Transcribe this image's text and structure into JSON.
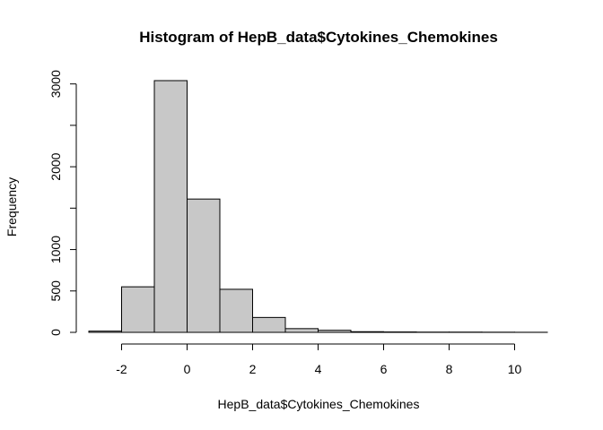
{
  "chart_data": {
    "type": "bar",
    "title": "Histogram of HepB_data$Cytokines_Chemokines",
    "xlabel": "HepB_data$Cytokines_Chemokines",
    "ylabel": "Frequency",
    "bins": [
      {
        "from": -3,
        "to": -2,
        "count": 15
      },
      {
        "from": -2,
        "to": -1,
        "count": 550
      },
      {
        "from": -1,
        "to": 0,
        "count": 3040
      },
      {
        "from": 0,
        "to": 1,
        "count": 1610
      },
      {
        "from": 1,
        "to": 2,
        "count": 520
      },
      {
        "from": 2,
        "to": 3,
        "count": 180
      },
      {
        "from": 3,
        "to": 4,
        "count": 45
      },
      {
        "from": 4,
        "to": 5,
        "count": 25
      },
      {
        "from": 5,
        "to": 6,
        "count": 8
      },
      {
        "from": 6,
        "to": 7,
        "count": 5
      },
      {
        "from": 7,
        "to": 8,
        "count": 3
      },
      {
        "from": 8,
        "to": 9,
        "count": 3
      },
      {
        "from": 9,
        "to": 10,
        "count": 2
      },
      {
        "from": 10,
        "to": 11,
        "count": 1
      }
    ],
    "xlim": [
      -3,
      11
    ],
    "ylim": [
      0,
      3040
    ],
    "x_ticks": [
      -2,
      0,
      2,
      4,
      6,
      8,
      10
    ],
    "x_tick_labels": [
      "-2",
      "0",
      "2",
      "4",
      "6",
      "8",
      "10"
    ],
    "y_ticks": [
      0,
      500,
      1000,
      2000,
      3000
    ],
    "y_tick_labels": [
      "0",
      "500",
      "1000",
      "2000",
      "3000"
    ],
    "bar_fill": "#c8c8c8",
    "grid": false
  }
}
